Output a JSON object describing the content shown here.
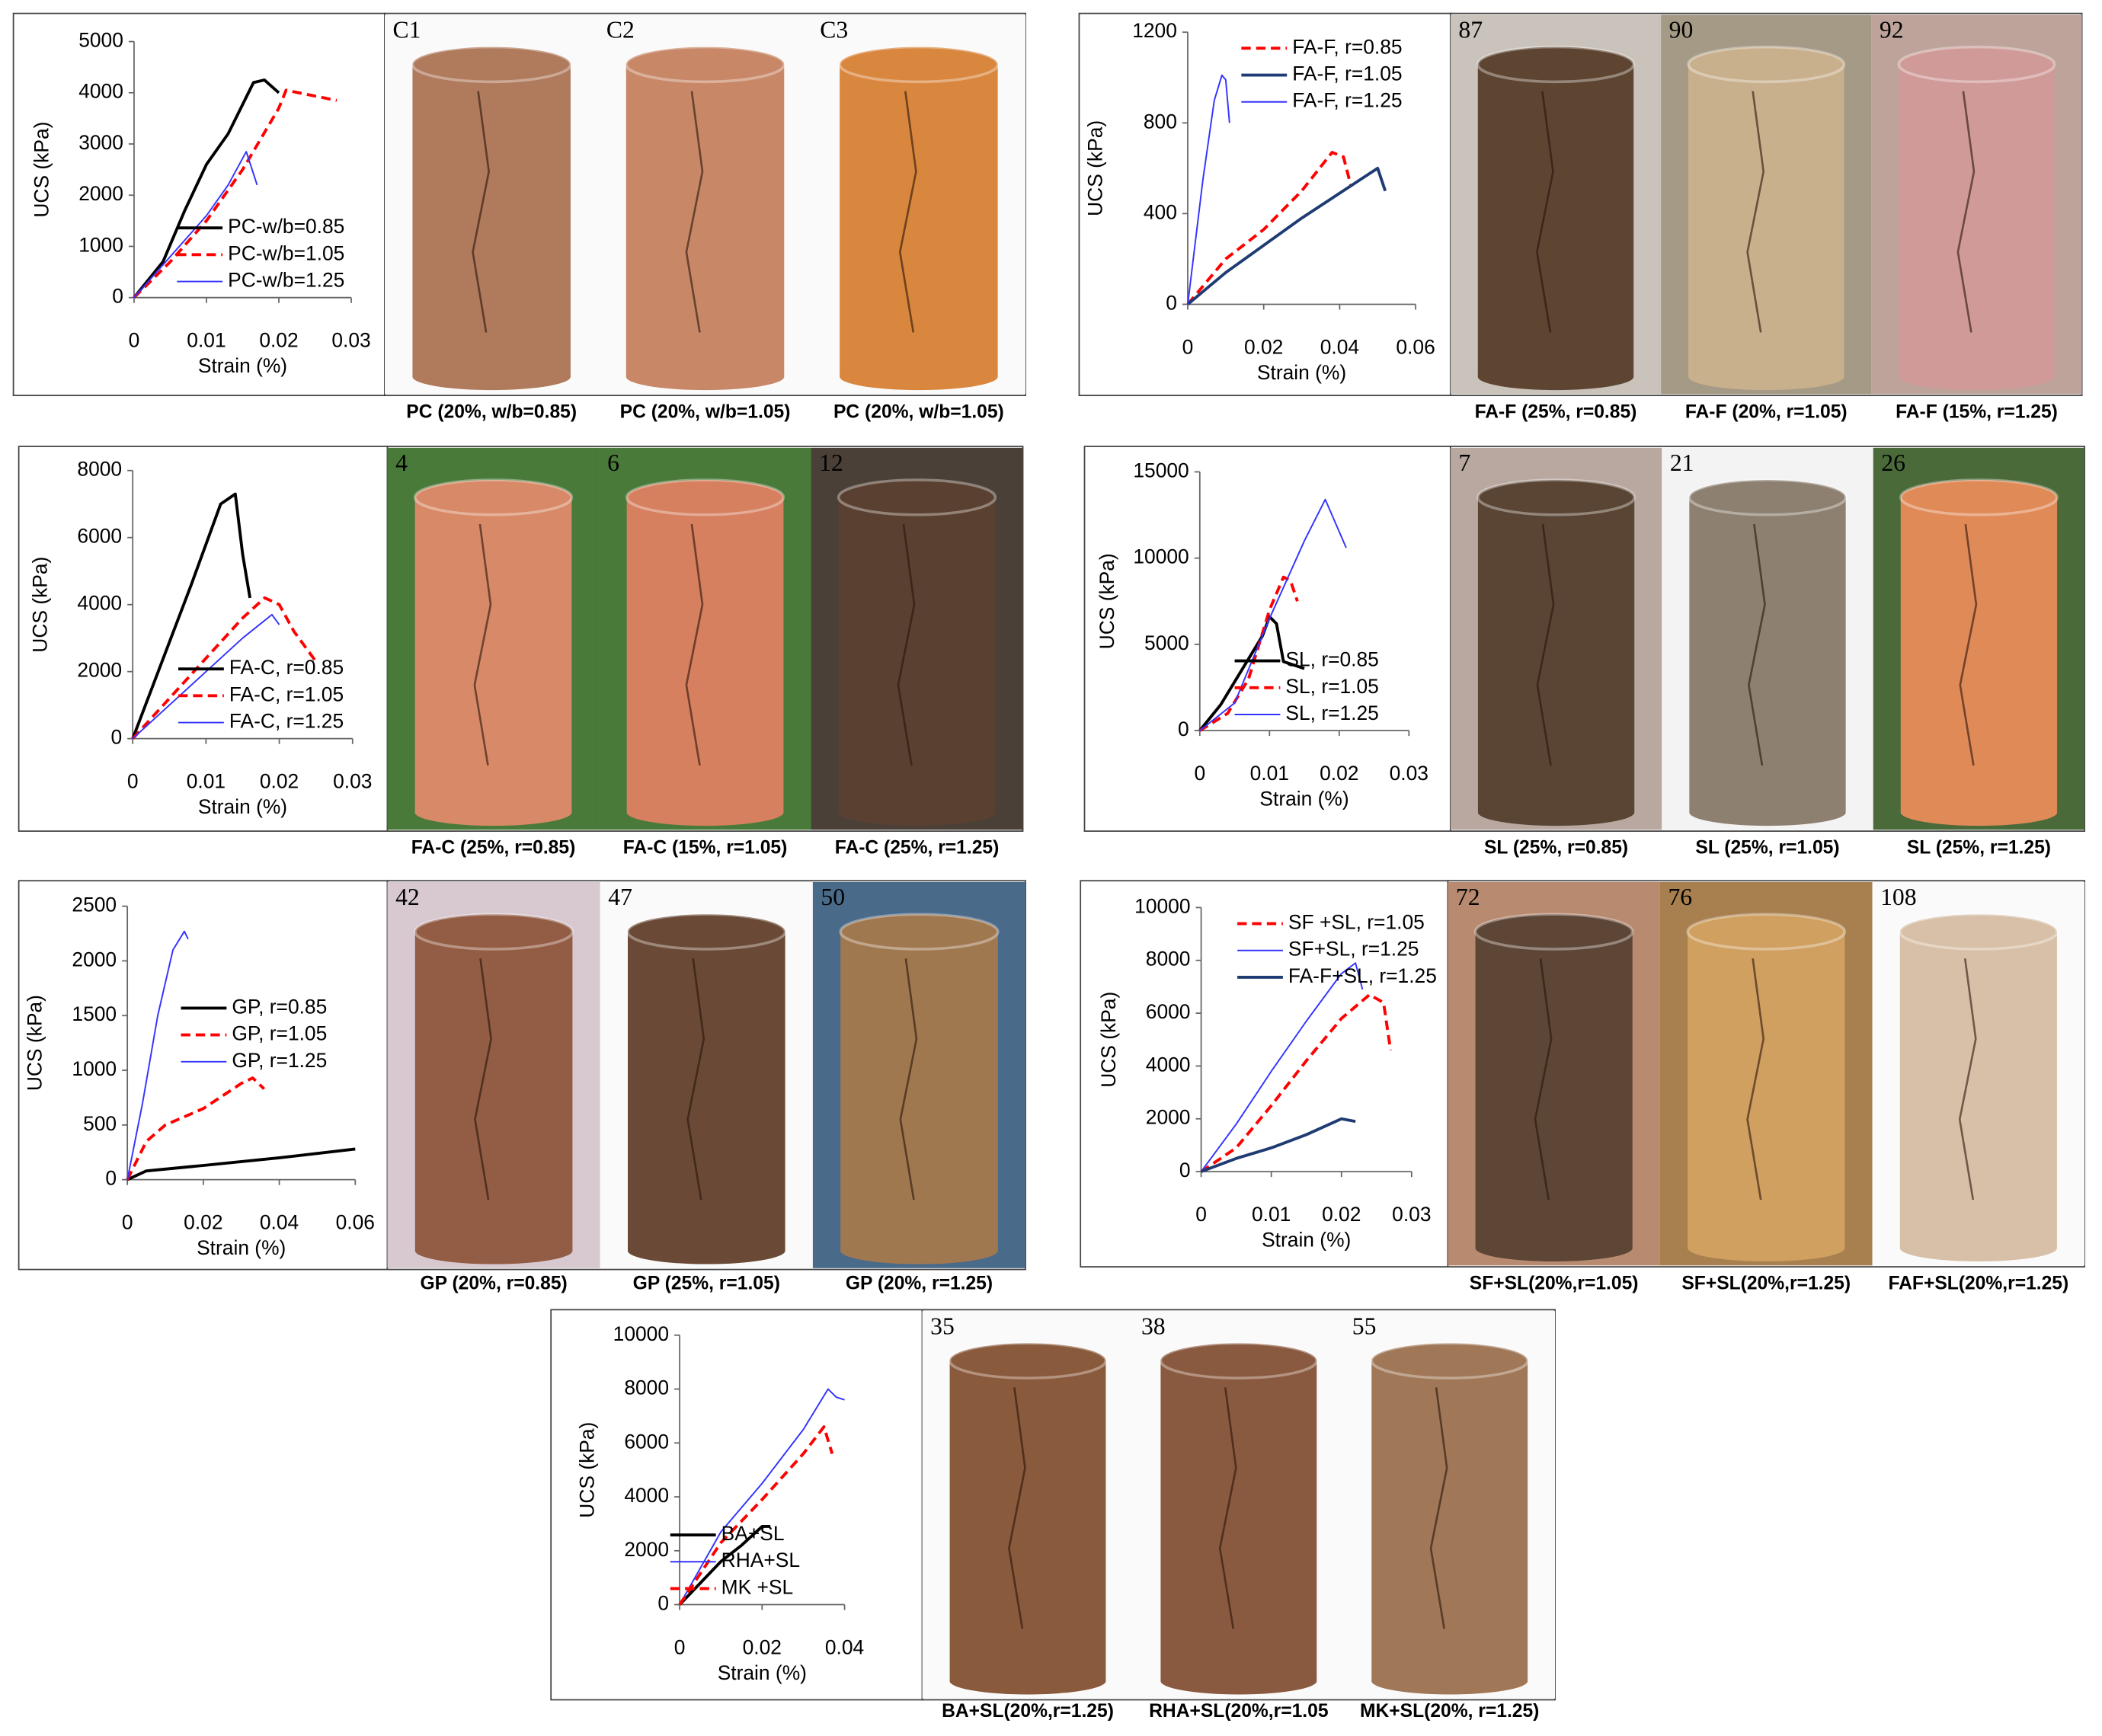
{
  "chart_data": [
    {
      "type": "line",
      "xlabel": "Strain (%)",
      "ylabel": "UCS (kPa)",
      "xlim": [
        0,
        0.03
      ],
      "ylim": [
        0,
        5000
      ],
      "xticks": [
        0,
        0.01,
        0.02,
        0.03
      ],
      "yticks": [
        0,
        1000,
        2000,
        3000,
        4000,
        5000
      ],
      "legend": "lower right",
      "series": [
        {
          "name": "PC-w/b=0.85",
          "color": "#000000",
          "style": "solid",
          "x": [
            0,
            0.004,
            0.007,
            0.01,
            0.013,
            0.0165,
            0.018,
            0.02
          ],
          "values": [
            0,
            700,
            1700,
            2600,
            3200,
            4200,
            4250,
            4000
          ]
        },
        {
          "name": "PC-w/b=1.05",
          "color": "#ff0000",
          "style": "dashed",
          "x": [
            0,
            0.005,
            0.01,
            0.015,
            0.02,
            0.021,
            0.028
          ],
          "values": [
            0,
            700,
            1500,
            2500,
            3700,
            4050,
            3850
          ]
        },
        {
          "name": "PC-w/b=1.25",
          "color": "#3333ff",
          "style": "thin",
          "x": [
            0,
            0.005,
            0.01,
            0.013,
            0.0155,
            0.017
          ],
          "values": [
            0,
            800,
            1600,
            2200,
            2850,
            2200
          ]
        }
      ],
      "photos": [
        {
          "label": "C1",
          "caption": "PC (20%, w/b=0.85)"
        },
        {
          "label": "C2",
          "caption": "PC (20%, w/b=1.05)"
        },
        {
          "label": "C3",
          "caption": "PC (20%, w/b=1.05)"
        }
      ]
    },
    {
      "type": "line",
      "xlabel": "Strain (%)",
      "ylabel": "UCS (kPa)",
      "xlim": [
        0,
        0.06
      ],
      "ylim": [
        0,
        1200
      ],
      "xticks": [
        0,
        0.02,
        0.04,
        0.06
      ],
      "yticks": [
        0,
        400,
        800,
        1200
      ],
      "legend": "upper right",
      "series": [
        {
          "name": "FA-F, r=0.85",
          "color": "#ff0000",
          "style": "dashed",
          "x": [
            0,
            0.01,
            0.02,
            0.03,
            0.038,
            0.041,
            0.043
          ],
          "values": [
            0,
            200,
            330,
            500,
            670,
            650,
            520
          ]
        },
        {
          "name": "FA-F, r=1.05",
          "color": "#1f3b73",
          "style": "solid",
          "x": [
            0,
            0.01,
            0.02,
            0.03,
            0.04,
            0.05,
            0.052
          ],
          "values": [
            0,
            140,
            260,
            380,
            490,
            600,
            500
          ]
        },
        {
          "name": "FA-F, r=1.25",
          "color": "#3333ff",
          "style": "thin",
          "x": [
            0,
            0.004,
            0.007,
            0.009,
            0.01,
            0.011
          ],
          "values": [
            0,
            550,
            900,
            1010,
            990,
            800
          ]
        }
      ],
      "photos": [
        {
          "label": "87",
          "caption": "FA-F (25%, r=0.85)"
        },
        {
          "label": "90",
          "caption": "FA-F (20%, r=1.05)"
        },
        {
          "label": "92",
          "caption": "FA-F (15%, r=1.25)"
        }
      ]
    },
    {
      "type": "line",
      "xlabel": "Strain (%)",
      "ylabel": "UCS (kPa)",
      "xlim": [
        0,
        0.03
      ],
      "ylim": [
        0,
        8000
      ],
      "xticks": [
        0,
        0.01,
        0.02,
        0.03
      ],
      "yticks": [
        0,
        2000,
        4000,
        6000,
        8000
      ],
      "legend": "lower right",
      "series": [
        {
          "name": "FA-C, r=0.85",
          "color": "#000000",
          "style": "solid",
          "x": [
            0,
            0.004,
            0.008,
            0.012,
            0.014,
            0.015,
            0.016
          ],
          "values": [
            0,
            2300,
            4600,
            7000,
            7300,
            5500,
            4200
          ]
        },
        {
          "name": "FA-C, r=1.05",
          "color": "#ff0000",
          "style": "dashed",
          "x": [
            0,
            0.005,
            0.01,
            0.015,
            0.018,
            0.02,
            0.022,
            0.025
          ],
          "values": [
            0,
            1200,
            2400,
            3600,
            4200,
            4000,
            3200,
            2300
          ]
        },
        {
          "name": "FA-C, r=1.25",
          "color": "#3333ff",
          "style": "thin",
          "x": [
            0,
            0.005,
            0.01,
            0.015,
            0.019,
            0.02
          ],
          "values": [
            0,
            1000,
            2000,
            3000,
            3700,
            3400
          ]
        }
      ],
      "photos": [
        {
          "label": "4",
          "caption": "FA-C (25%, r=0.85)"
        },
        {
          "label": "6",
          "caption": "FA-C (15%, r=1.05)"
        },
        {
          "label": "12",
          "caption": "FA-C (25%, r=1.25)"
        }
      ]
    },
    {
      "type": "line",
      "xlabel": "Strain (%)",
      "ylabel": "UCS (kPa)",
      "xlim": [
        0,
        0.03
      ],
      "ylim": [
        0,
        15000
      ],
      "xticks": [
        0,
        0.01,
        0.02,
        0.03
      ],
      "yticks": [
        0,
        5000,
        10000,
        15000
      ],
      "legend": "lower right",
      "series": [
        {
          "name": "SL, r=0.85",
          "color": "#000000",
          "style": "solid",
          "x": [
            0,
            0.003,
            0.006,
            0.009,
            0.01,
            0.011,
            0.012,
            0.015
          ],
          "values": [
            0,
            1500,
            3500,
            5500,
            6600,
            6200,
            4000,
            3600
          ]
        },
        {
          "name": "SL, r=1.05",
          "color": "#ff0000",
          "style": "dashed",
          "x": [
            0,
            0.004,
            0.007,
            0.01,
            0.012,
            0.013,
            0.014
          ],
          "values": [
            0,
            1000,
            3000,
            7000,
            8900,
            8700,
            7500
          ]
        },
        {
          "name": "SL, r=1.25",
          "color": "#3333ff",
          "style": "thin",
          "x": [
            0,
            0.005,
            0.01,
            0.015,
            0.018,
            0.021
          ],
          "values": [
            0,
            1600,
            6500,
            11000,
            13400,
            10600
          ]
        }
      ],
      "photos": [
        {
          "label": "7",
          "caption": "SL (25%, r=0.85)"
        },
        {
          "label": "21",
          "caption": "SL (25%, r=1.05)"
        },
        {
          "label": "26",
          "caption": "SL (25%, r=1.25)"
        }
      ]
    },
    {
      "type": "line",
      "xlabel": "Strain (%)",
      "ylabel": "UCS (kPa)",
      "xlim": [
        0,
        0.06
      ],
      "ylim": [
        0,
        2500
      ],
      "xticks": [
        0,
        0.02,
        0.04,
        0.06
      ],
      "yticks": [
        0,
        500,
        1000,
        1500,
        2000,
        2500
      ],
      "legend": "center right",
      "series": [
        {
          "name": "GP, r=0.85",
          "color": "#000000",
          "style": "solid",
          "x": [
            0,
            0.005,
            0.02,
            0.04,
            0.06
          ],
          "values": [
            0,
            80,
            130,
            200,
            280
          ]
        },
        {
          "name": "GP, r=1.05",
          "color": "#ff0000",
          "style": "dashed",
          "x": [
            0,
            0.005,
            0.01,
            0.02,
            0.03,
            0.033,
            0.036
          ],
          "values": [
            0,
            350,
            500,
            650,
            880,
            930,
            830
          ]
        },
        {
          "name": "GP, r=1.25",
          "color": "#3333ff",
          "style": "thin",
          "x": [
            0,
            0.004,
            0.008,
            0.012,
            0.015,
            0.016
          ],
          "values": [
            0,
            700,
            1500,
            2100,
            2270,
            2200
          ]
        }
      ],
      "photos": [
        {
          "label": "42",
          "caption": "GP (20%, r=0.85)"
        },
        {
          "label": "47",
          "caption": "GP (25%, r=1.05)"
        },
        {
          "label": "50",
          "caption": "GP (20%, r=1.25)"
        }
      ]
    },
    {
      "type": "line",
      "xlabel": "Strain (%)",
      "ylabel": "UCS (kPa)",
      "xlim": [
        0,
        0.03
      ],
      "ylim": [
        0,
        10000
      ],
      "xticks": [
        0,
        0.01,
        0.02,
        0.03
      ],
      "yticks": [
        0,
        2000,
        4000,
        6000,
        8000,
        10000
      ],
      "legend": "upper right",
      "series": [
        {
          "name": "SF +SL, r=1.05",
          "color": "#ff0000",
          "style": "dashed",
          "x": [
            0,
            0.005,
            0.01,
            0.015,
            0.02,
            0.024,
            0.026,
            0.027
          ],
          "values": [
            0,
            900,
            2500,
            4200,
            5800,
            6700,
            6400,
            4600
          ]
        },
        {
          "name": "SF+SL, r=1.25",
          "color": "#3333ff",
          "style": "thin",
          "x": [
            0,
            0.005,
            0.01,
            0.015,
            0.02,
            0.022,
            0.023
          ],
          "values": [
            0,
            1800,
            3800,
            5700,
            7500,
            7900,
            6900
          ]
        },
        {
          "name": "FA-F+SL, r=1.25",
          "color": "#1f3b73",
          "style": "solid",
          "x": [
            0,
            0.005,
            0.01,
            0.015,
            0.02,
            0.022
          ],
          "values": [
            0,
            500,
            900,
            1400,
            2000,
            1900
          ]
        }
      ],
      "photos": [
        {
          "label": "72",
          "caption": "SF+SL(20%,r=1.05)"
        },
        {
          "label": "76",
          "caption": "SF+SL(20%,r=1.25)"
        },
        {
          "label": "108",
          "caption": "FAF+SL(20%,r=1.25)"
        }
      ]
    },
    {
      "type": "line",
      "xlabel": "Strain (%)",
      "ylabel": "UCS (kPa)",
      "xlim": [
        0,
        0.04
      ],
      "ylim": [
        0,
        10000
      ],
      "xticks": [
        0,
        0.02,
        0.04
      ],
      "yticks": [
        0,
        2000,
        4000,
        6000,
        8000,
        10000
      ],
      "legend": "lower right",
      "series": [
        {
          "name": "BA+SL",
          "color": "#000000",
          "style": "solid",
          "x": [
            0,
            0.005,
            0.01,
            0.015,
            0.02,
            0.022
          ],
          "values": [
            0,
            800,
            1600,
            2200,
            2900,
            2900
          ]
        },
        {
          "name": "RHA+SL",
          "color": "#3333ff",
          "style": "thin",
          "x": [
            0,
            0.01,
            0.02,
            0.03,
            0.036,
            0.038,
            0.04
          ],
          "values": [
            0,
            2700,
            4500,
            6500,
            8000,
            7700,
            7600
          ]
        },
        {
          "name": "MK +SL",
          "color": "#ff0000",
          "style": "dashed",
          "x": [
            0,
            0.01,
            0.02,
            0.03,
            0.035,
            0.037
          ],
          "values": [
            0,
            2300,
            3900,
            5600,
            6600,
            5600
          ]
        }
      ],
      "photos": [
        {
          "label": "35",
          "caption": "BA+SL(20%,r=1.25)"
        },
        {
          "label": "38",
          "caption": "RHA+SL(20%,r=1.05"
        },
        {
          "label": "55",
          "caption": "MK+SL(20%, r=1.25)"
        }
      ]
    }
  ]
}
